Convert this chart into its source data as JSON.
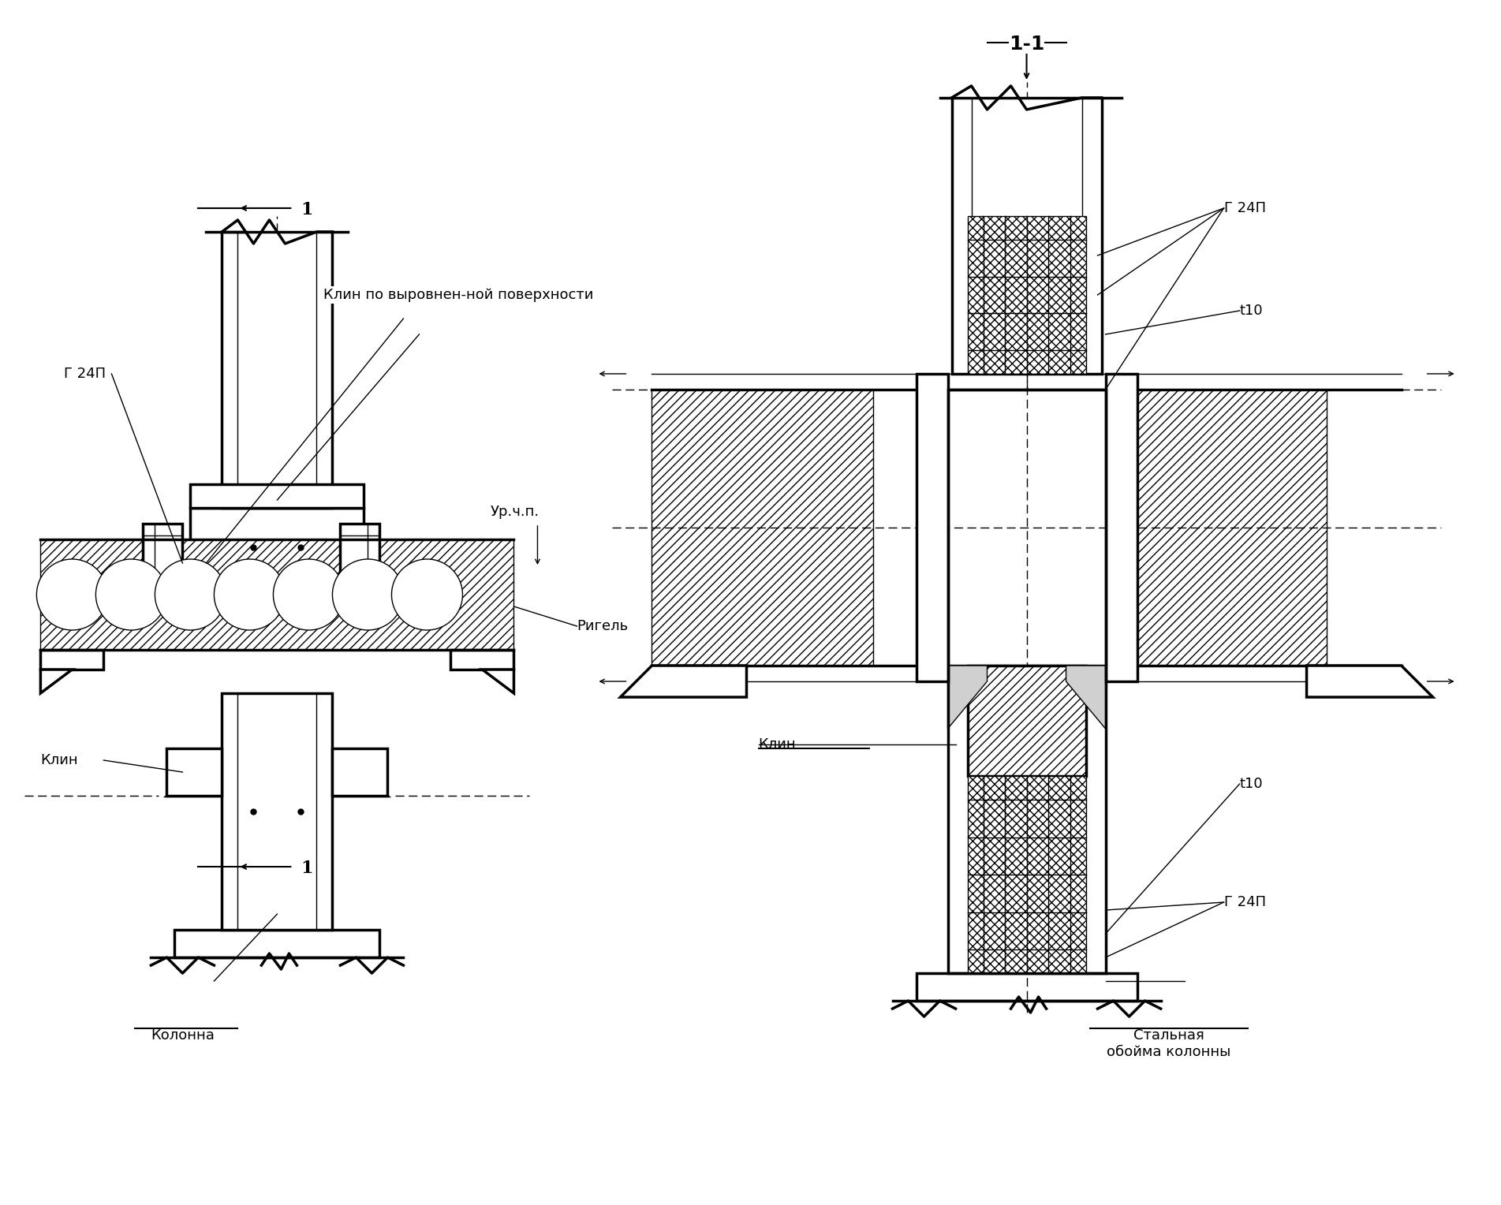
{
  "title": "",
  "background_color": "#ffffff",
  "line_color": "#000000",
  "hatch_color": "#000000",
  "figsize": [
    19.03,
    15.28
  ],
  "dpi": 100,
  "labels": {
    "section_mark_top": "1",
    "section_mark_bottom": "1",
    "section_title": "1-1",
    "g24p_left": "Г 24П",
    "g24p_right_top": "Г 24П",
    "g24p_right_bottom": "Г 24П",
    "t10_top": "t10",
    "t10_bottom": "t10",
    "klin_top": "Клин по выровнен-ной поверхности",
    "ur_chp": "Ур.ч.п.",
    "rigel": "Ригель",
    "klin_bottom": "Клин",
    "kolonna": "Колонна",
    "stalnaya": "Стальная\nобойма колонны"
  }
}
